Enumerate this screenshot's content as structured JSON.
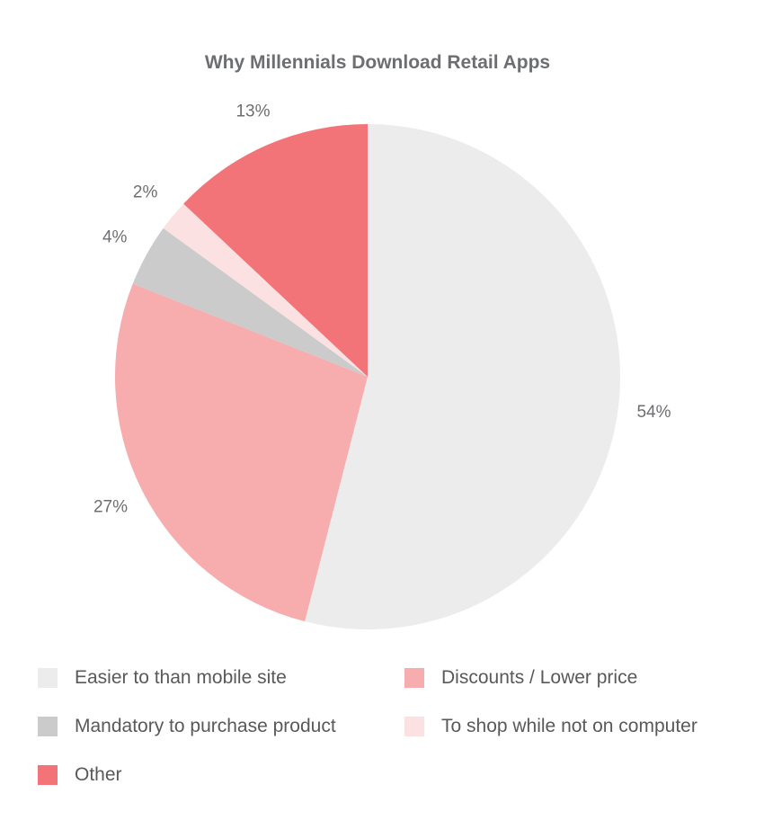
{
  "chart_data": {
    "type": "pie",
    "title": "Why Millennials Download Retail Apps",
    "slices": [
      {
        "label": "Easier to than mobile site",
        "value": 54,
        "display": "54%",
        "color": "#ebeceb"
      },
      {
        "label": "Discounts / Lower price",
        "value": 27,
        "display": "27%",
        "color": "#f7acae"
      },
      {
        "label": "Mandatory to purchase product",
        "value": 4,
        "display": "4%",
        "color": "#cbcbcb"
      },
      {
        "label": "To shop while not on computer",
        "value": 2,
        "display": "2%",
        "color": "#fbe1e1"
      },
      {
        "label": "Other",
        "value": 13,
        "display": "13%",
        "color": "#f27479"
      }
    ],
    "legend": {
      "placement": "bottom",
      "items": [
        {
          "label": "Easier to than mobile site",
          "color": "#ebeceb"
        },
        {
          "label": "Discounts / Lower price",
          "color": "#f7acae"
        },
        {
          "label": "Mandatory to purchase product",
          "color": "#cbcbcb"
        },
        {
          "label": "To shop while not on computer",
          "color": "#fbe1e1"
        },
        {
          "label": "Other",
          "color": "#f27479"
        }
      ]
    }
  }
}
